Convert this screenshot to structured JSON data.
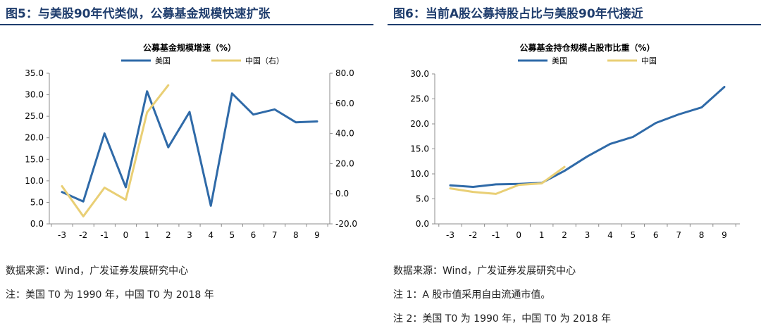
{
  "colors": {
    "usa": "#2f6aa8",
    "china": "#e9cf75",
    "title": "#1f3d6d"
  },
  "left": {
    "fig_title": "图5：与美股90年代类似，公募基金规模快速扩张",
    "source": "数据来源：Wind，广发证券发展研究中心",
    "notes": [
      "注：美国 T0 为 1990 年，中国 T0 为 2018 年"
    ]
  },
  "right": {
    "fig_title": "图6：当前A股公募持股占比与美股90年代接近",
    "source": "数据来源：Wind，广发证券发展研究中心",
    "notes": [
      "注 1：A 股市值采用自由流通市值。",
      "注 2：美国 T0 为 1990 年，中国 T0 为 2018 年"
    ]
  },
  "chart_data": [
    {
      "type": "line",
      "title": "公募基金规模增速（%）",
      "x": [
        -3,
        -2,
        -1,
        0,
        1,
        2,
        3,
        4,
        5,
        6,
        7,
        8,
        9
      ],
      "x_ticks": [
        "-3",
        "-2",
        "-1",
        "0",
        "1",
        "2",
        "3",
        "4",
        "5",
        "6",
        "7",
        "8",
        "9"
      ],
      "ylim": [
        0,
        35
      ],
      "y_ticks": [
        "0.0",
        "5.0",
        "10.0",
        "15.0",
        "20.0",
        "25.0",
        "30.0",
        "35.0"
      ],
      "y2lim": [
        -20,
        80
      ],
      "y2_ticks": [
        "-20.0",
        "0.0",
        "20.0",
        "40.0",
        "60.0",
        "80.0"
      ],
      "legend_position": "top",
      "grid": false,
      "series": [
        {
          "name": "美国",
          "axis": "left",
          "color": "#2f6aa8",
          "x": [
            -3,
            -2,
            -1,
            0,
            1,
            2,
            3,
            4,
            5,
            6,
            7,
            8,
            9
          ],
          "values": [
            7.4,
            5.2,
            21.0,
            8.5,
            30.8,
            17.8,
            26.0,
            4.2,
            30.3,
            25.4,
            26.6,
            23.6,
            23.8
          ]
        },
        {
          "name": "中国（右）",
          "axis": "right",
          "color": "#e9cf75",
          "x": [
            -3,
            -2,
            -1,
            0,
            1,
            2
          ],
          "values": [
            5,
            -15,
            4,
            -4,
            54,
            72
          ]
        }
      ]
    },
    {
      "type": "line",
      "title": "公募基金持仓规模占股市比重（%）",
      "x": [
        -3,
        -2,
        -1,
        0,
        1,
        2,
        3,
        4,
        5,
        6,
        7,
        8,
        9
      ],
      "x_ticks": [
        "-3",
        "-2",
        "-1",
        "0",
        "1",
        "2",
        "3",
        "4",
        "5",
        "6",
        "7",
        "8",
        "9"
      ],
      "ylim": [
        0,
        30
      ],
      "y_ticks": [
        "0.0",
        "5.0",
        "10.0",
        "15.0",
        "20.0",
        "25.0",
        "30.0"
      ],
      "legend_position": "top",
      "grid": false,
      "series": [
        {
          "name": "美国",
          "axis": "left",
          "color": "#2f6aa8",
          "x": [
            -3,
            -2,
            -1,
            0,
            1,
            2,
            3,
            4,
            5,
            6,
            7,
            8,
            9
          ],
          "values": [
            7.7,
            7.4,
            7.9,
            8.0,
            8.2,
            10.6,
            13.5,
            16.0,
            17.4,
            20.2,
            21.9,
            23.3,
            27.4
          ]
        },
        {
          "name": "中国",
          "axis": "left",
          "color": "#e9cf75",
          "x": [
            -3,
            -2,
            -1,
            0,
            1,
            2
          ],
          "values": [
            7.1,
            6.4,
            6.0,
            7.8,
            8.1,
            11.4
          ]
        }
      ]
    }
  ]
}
